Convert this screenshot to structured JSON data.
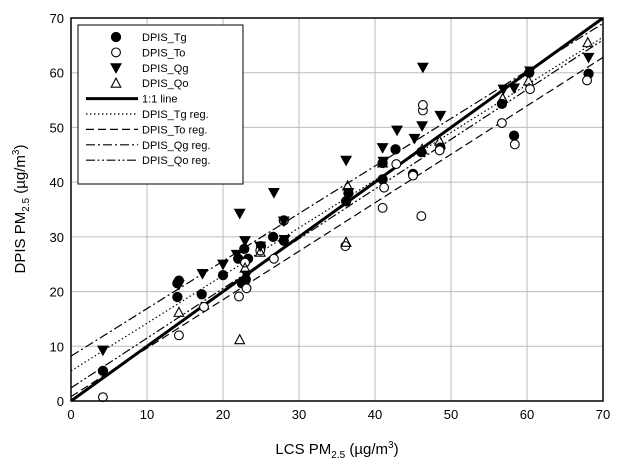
{
  "chart_data": {
    "type": "scatter",
    "xlim": [
      0,
      70
    ],
    "ylim": [
      0,
      70
    ],
    "xticks": [
      0,
      10,
      20,
      30,
      40,
      50,
      60,
      70
    ],
    "yticks": [
      0,
      10,
      20,
      30,
      40,
      50,
      60,
      70
    ],
    "grid": true,
    "legend_position": "top-left",
    "xlabel": {
      "main": "LCS PM",
      "sub": "2.5",
      "units": " (µg/m",
      "sup": "3",
      "close": ")"
    },
    "ylabel": {
      "main": "DPIS PM",
      "sub": "2.5",
      "units": " (µg/m",
      "sup": "3",
      "close": ")"
    },
    "series": [
      {
        "name": "DPIS_Tg",
        "marker": "filled-circle",
        "points": [
          [
            4.2,
            5.5
          ],
          [
            14,
            19
          ],
          [
            14,
            21.5
          ],
          [
            14.2,
            22
          ],
          [
            17.2,
            19.5
          ],
          [
            20,
            23
          ],
          [
            22,
            26
          ],
          [
            23.3,
            26
          ],
          [
            22.5,
            21.5
          ],
          [
            22.8,
            27.8
          ],
          [
            23,
            22.2
          ],
          [
            25,
            28.3
          ],
          [
            26.6,
            30
          ],
          [
            28,
            33
          ],
          [
            28,
            29.3
          ],
          [
            36.2,
            36.5
          ],
          [
            36.5,
            38
          ],
          [
            41,
            40.5
          ],
          [
            41,
            43.5
          ],
          [
            42.7,
            46
          ],
          [
            45,
            41.5
          ],
          [
            46.1,
            45.5
          ],
          [
            48.6,
            46.3
          ],
          [
            56.7,
            54.3
          ],
          [
            58.3,
            48.5
          ],
          [
            60.3,
            60
          ],
          [
            68.1,
            59.8
          ]
        ]
      },
      {
        "name": "DPIS_To",
        "marker": "open-circle",
        "points": [
          [
            4.2,
            0.7
          ],
          [
            14.2,
            12
          ],
          [
            17.5,
            17.2
          ],
          [
            22.1,
            19.1
          ],
          [
            22.9,
            25.3
          ],
          [
            23.1,
            20.6
          ],
          [
            24.9,
            27.5
          ],
          [
            26.7,
            26
          ],
          [
            28,
            33
          ],
          [
            36.1,
            28.3
          ],
          [
            41,
            35.3
          ],
          [
            41.2,
            39
          ],
          [
            42.8,
            43.3
          ],
          [
            45,
            41.2
          ],
          [
            46.1,
            33.8
          ],
          [
            46.3,
            53.1
          ],
          [
            46.3,
            54.1
          ],
          [
            48.5,
            45.8
          ],
          [
            56.7,
            50.8
          ],
          [
            58.4,
            46.9
          ],
          [
            60.4,
            57
          ],
          [
            67.9,
            58.6
          ]
        ]
      },
      {
        "name": "DPIS_Qg",
        "marker": "filled-triangle-down",
        "points": [
          [
            4.2,
            9.3
          ],
          [
            14.2,
            21.3
          ],
          [
            17.3,
            23.3
          ],
          [
            20,
            25
          ],
          [
            21.8,
            26.8
          ],
          [
            22.2,
            34.3
          ],
          [
            22.9,
            29.3
          ],
          [
            23.1,
            23
          ],
          [
            24.9,
            28.3
          ],
          [
            26.7,
            38.1
          ],
          [
            28,
            32.9
          ],
          [
            28.1,
            29.5
          ],
          [
            36.2,
            44
          ],
          [
            36.5,
            38.1
          ],
          [
            41,
            46.3
          ],
          [
            41.1,
            43.8
          ],
          [
            42.9,
            49.5
          ],
          [
            45.2,
            48
          ],
          [
            46.2,
            50.3
          ],
          [
            46.3,
            61
          ],
          [
            48.6,
            52.2
          ],
          [
            56.9,
            57
          ],
          [
            58.3,
            57.2
          ],
          [
            60.4,
            60.3
          ],
          [
            68.1,
            62.8
          ]
        ]
      },
      {
        "name": "DPIS_Qo",
        "marker": "open-triangle-up",
        "points": [
          [
            14.2,
            16.2
          ],
          [
            22.2,
            11.2
          ],
          [
            22.9,
            24.3
          ],
          [
            24.9,
            27.2
          ],
          [
            36.2,
            29
          ],
          [
            36.4,
            39.3
          ],
          [
            41,
            43.5
          ],
          [
            46.2,
            46
          ],
          [
            48.5,
            47.5
          ],
          [
            56.8,
            55.3
          ],
          [
            60.2,
            58.5
          ],
          [
            68,
            65.5
          ]
        ]
      }
    ],
    "lines": [
      {
        "name": "1:1 line",
        "style": "solid-thick",
        "x": [
          0,
          70
        ],
        "y": [
          0,
          70
        ]
      },
      {
        "name": "DPIS_Tg reg.",
        "style": "dotted",
        "x": [
          0,
          70
        ],
        "y": [
          5.5,
          66.5
        ]
      },
      {
        "name": "DPIS_To reg.",
        "style": "dashed",
        "x": [
          0,
          70
        ],
        "y": [
          0.8,
          62.8
        ]
      },
      {
        "name": "DPIS_Qg reg.",
        "style": "dashdot",
        "x": [
          0,
          70
        ],
        "y": [
          8.2,
          69
        ]
      },
      {
        "name": "DPIS_Qo reg.",
        "style": "dashdotdot",
        "x": [
          0,
          70
        ],
        "y": [
          2.4,
          66
        ]
      }
    ]
  }
}
